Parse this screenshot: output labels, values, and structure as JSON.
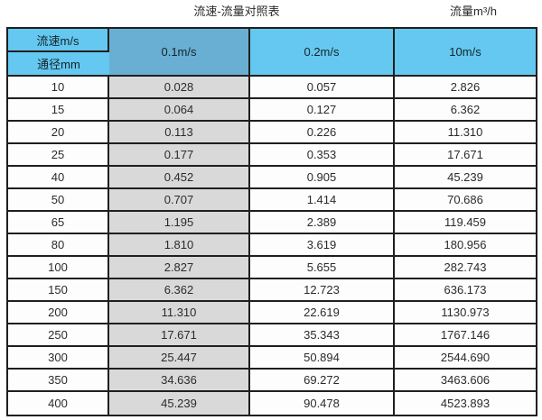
{
  "titles": {
    "left": "流速-流量对照表",
    "right": "流量m³/h"
  },
  "table": {
    "corner": {
      "top": "流速m/s",
      "bottom": "通径mm"
    },
    "velocity_columns": [
      "0.1m/s",
      "0.2m/s",
      "10m/s"
    ],
    "rows": [
      {
        "dn": "10",
        "values": [
          "0.028",
          "0.057",
          "2.826"
        ]
      },
      {
        "dn": "15",
        "values": [
          "0.064",
          "0.127",
          "6.362"
        ]
      },
      {
        "dn": "20",
        "values": [
          "0.113",
          "0.226",
          "11.310"
        ]
      },
      {
        "dn": "25",
        "values": [
          "0.177",
          "0.353",
          "17.671"
        ]
      },
      {
        "dn": "40",
        "values": [
          "0.452",
          "0.905",
          "45.239"
        ]
      },
      {
        "dn": "50",
        "values": [
          "0.707",
          "1.414",
          "70.686"
        ]
      },
      {
        "dn": "65",
        "values": [
          "1.195",
          "2.389",
          "119.459"
        ]
      },
      {
        "dn": "80",
        "values": [
          "1.810",
          "3.619",
          "180.956"
        ]
      },
      {
        "dn": "100",
        "values": [
          "2.827",
          "5.655",
          "282.743"
        ]
      },
      {
        "dn": "150",
        "values": [
          "6.362",
          "12.723",
          "636.173"
        ]
      },
      {
        "dn": "200",
        "values": [
          "11.310",
          "22.619",
          "1130.973"
        ]
      },
      {
        "dn": "250",
        "values": [
          "17.671",
          "35.343",
          "1767.146"
        ]
      },
      {
        "dn": "300",
        "values": [
          "25.447",
          "50.894",
          "2544.690"
        ]
      },
      {
        "dn": "350",
        "values": [
          "34.636",
          "69.272",
          "3463.606"
        ]
      },
      {
        "dn": "400",
        "values": [
          "45.239",
          "90.478",
          "4523.893"
        ]
      }
    ]
  },
  "colors": {
    "headerBlue": "#64c8f0",
    "highlightBlue": "#69afd3",
    "highlightGray": "#d9d9d9",
    "border": "#1f1f1f"
  },
  "chart_data": {
    "type": "table",
    "title": "流速-流量对照表",
    "unit_label": "流量m³/h",
    "columns": [
      "通径mm",
      "0.1m/s",
      "0.2m/s",
      "10m/s"
    ],
    "row_header_label_top": "流速m/s",
    "row_header_label_bottom": "通径mm",
    "rows": [
      [
        10,
        0.028,
        0.057,
        2.826
      ],
      [
        15,
        0.064,
        0.127,
        6.362
      ],
      [
        20,
        0.113,
        0.226,
        11.31
      ],
      [
        25,
        0.177,
        0.353,
        17.671
      ],
      [
        40,
        0.452,
        0.905,
        45.239
      ],
      [
        50,
        0.707,
        1.414,
        70.686
      ],
      [
        65,
        1.195,
        2.389,
        119.459
      ],
      [
        80,
        1.81,
        3.619,
        180.956
      ],
      [
        100,
        2.827,
        5.655,
        282.743
      ],
      [
        150,
        6.362,
        12.723,
        636.173
      ],
      [
        200,
        11.31,
        22.619,
        1130.973
      ],
      [
        250,
        17.671,
        35.343,
        1767.146
      ],
      [
        300,
        25.447,
        50.894,
        2544.69
      ],
      [
        350,
        34.636,
        69.272,
        3463.606
      ],
      [
        400,
        45.239,
        90.478,
        4523.893
      ]
    ],
    "highlighted_column": "0.1m/s",
    "layout": "first column = pipe diameter (mm), remaining columns = flow rate (m³/h) at given velocity"
  }
}
